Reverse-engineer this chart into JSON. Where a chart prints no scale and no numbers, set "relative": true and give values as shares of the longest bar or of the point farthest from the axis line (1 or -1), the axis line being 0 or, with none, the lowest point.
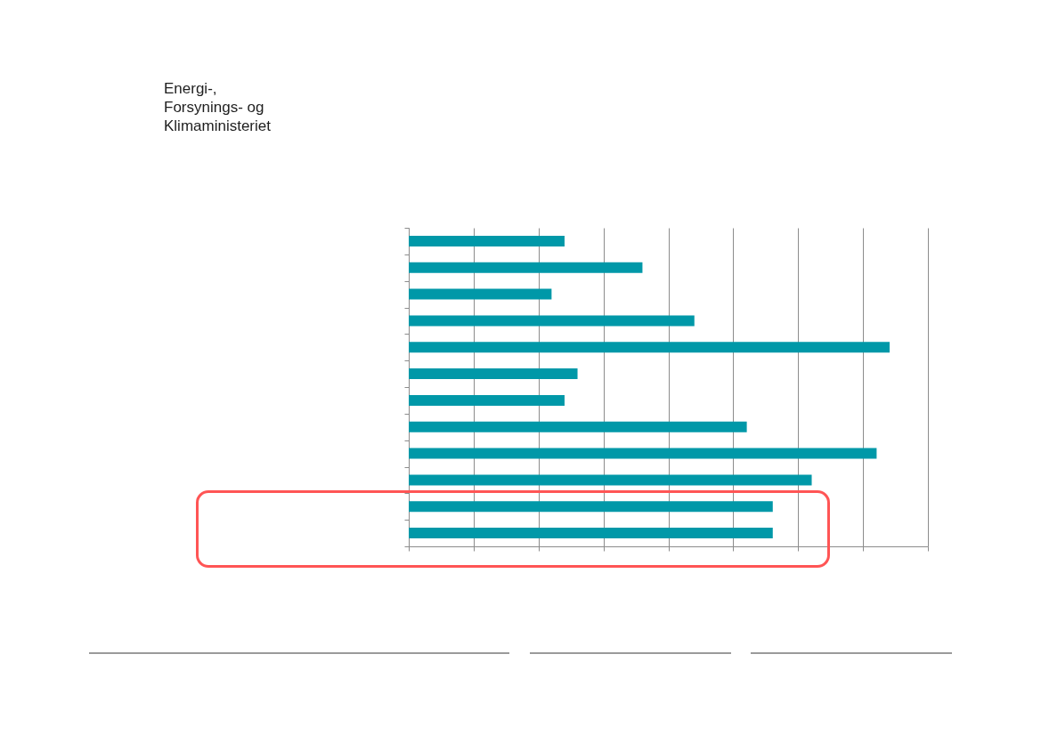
{
  "chart_data": {
    "type": "bar",
    "orientation": "horizontal",
    "relative": true,
    "categories": [
      null,
      null,
      null,
      null,
      null,
      null,
      null,
      null,
      null,
      null,
      null,
      null
    ],
    "values": [
      0.324,
      0.486,
      0.297,
      0.594,
      1,
      0.351,
      0.324,
      0.703,
      0.973,
      0.838,
      0.757,
      0.757
    ],
    "color": "#0098a8",
    "grid": "x",
    "annotations": [
      "Energi-, Forsynings- og Klimaministeriet"
    ]
  }
}
